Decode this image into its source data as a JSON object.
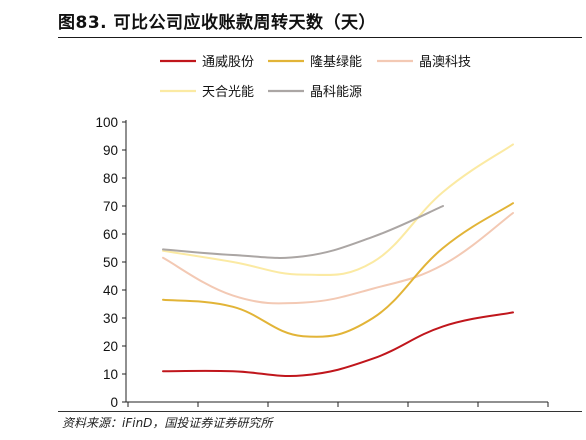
{
  "figure": {
    "title": "图83. 可比公司应收账款周转天数（天）",
    "source": "资料来源：iFinD，国投证券证券研究所"
  },
  "chart_data": {
    "type": "line",
    "title": "图83. 可比公司应收账款周转天数（天）",
    "xlabel": "",
    "ylabel": "",
    "x_categories_count": 6,
    "x_tick_labels": [],
    "ylim": [
      0,
      100
    ],
    "y_ticks": [
      0,
      10,
      20,
      30,
      40,
      50,
      60,
      70,
      80,
      90,
      100
    ],
    "grid": false,
    "legend_position": "top",
    "series": [
      {
        "name": "通威股份",
        "color": "#c0161c",
        "values": [
          11,
          11,
          9.5,
          15.5,
          27,
          32
        ]
      },
      {
        "name": "隆基绿能",
        "color": "#e2b437",
        "values": [
          36.5,
          34,
          23.5,
          30,
          55,
          71
        ]
      },
      {
        "name": "晶澳科技",
        "color": "#f3c9b4",
        "values": [
          51.5,
          38,
          35.5,
          40.5,
          49,
          67.5
        ]
      },
      {
        "name": "天合光能",
        "color": "#fbeaa3",
        "values": [
          54,
          50,
          45.5,
          50,
          75,
          92
        ]
      },
      {
        "name": "晶科能源",
        "color": "#aba6a4",
        "values": [
          54.5,
          52.5,
          52,
          59,
          70,
          null
        ]
      }
    ]
  }
}
